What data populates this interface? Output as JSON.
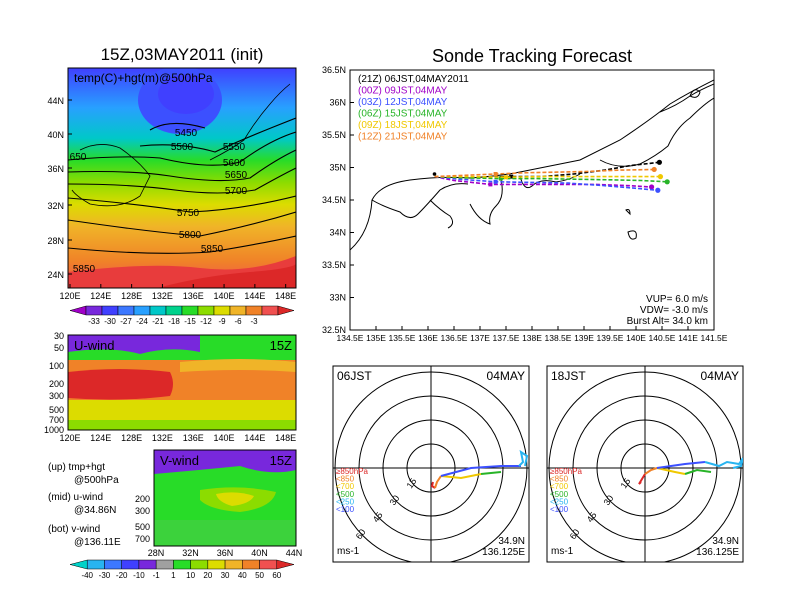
{
  "left_title": "15Z,03MAY2011 (init)",
  "right_title": "Sonde Tracking Forecast",
  "map_panel": {
    "label": "temp(C)+hgt(m)@500hPa",
    "lat_ticks": [
      "44N",
      "40N",
      "36N",
      "32N",
      "28N",
      "24N"
    ],
    "lon_ticks": [
      "120E",
      "124E",
      "128E",
      "132E",
      "136E",
      "140E",
      "144E",
      "148E"
    ],
    "contour_labels": [
      "5450",
      "5500",
      "5550",
      "5600",
      "5650",
      "5700",
      "5750",
      "5800",
      "5850",
      "5850",
      "650"
    ],
    "colorbar_ticks": [
      "-33",
      "-30",
      "-27",
      "-24",
      "-21",
      "-18",
      "-15",
      "-12",
      "-9",
      "-6",
      "-3"
    ],
    "colorbar_colors": [
      "#a000c8",
      "#7828dc",
      "#4040ff",
      "#3c78ff",
      "#28a0ff",
      "#00c8c8",
      "#00d28c",
      "#28dc28",
      "#8cdc00",
      "#dcdc00",
      "#f0b428",
      "#f08228",
      "#f05050",
      "#dc2828"
    ]
  },
  "u_panel": {
    "label": "U-wind",
    "time": "15Z",
    "y_ticks": [
      "30",
      "50",
      "100",
      "200",
      "300",
      "500",
      "700",
      "1000"
    ],
    "x_ticks": [
      "120E",
      "124E",
      "128E",
      "132E",
      "136E",
      "140E",
      "144E",
      "148E"
    ]
  },
  "v_panel": {
    "label": "V-wind",
    "time": "15Z",
    "y_ticks": [
      "200",
      "300",
      "500",
      "700"
    ],
    "x_ticks": [
      "28N",
      "32N",
      "36N",
      "40N",
      "44N"
    ]
  },
  "legend_notes": [
    {
      "line1": "(up) tmp+hgt",
      "line2": "@500hPa"
    },
    {
      "line1": "(mid) u-wind",
      "line2": "@34.86N"
    },
    {
      "line1": "(bot) v-wind",
      "line2": "@136.11E"
    }
  ],
  "wind_colorbar": {
    "ticks": [
      "-40",
      "-30",
      "-20",
      "-10",
      "-1",
      "1",
      "10",
      "20",
      "30",
      "40",
      "50",
      "60"
    ],
    "colors": [
      "#00d2c8",
      "#28b4f0",
      "#3c78ff",
      "#4040ff",
      "#7828dc",
      "#a0a0a0",
      "#28dc28",
      "#8cdc00",
      "#dcdc00",
      "#f0b428",
      "#f08228",
      "#f05050",
      "#dc2828"
    ]
  },
  "track_panel": {
    "lat_ticks": [
      "36.5N",
      "36N",
      "35.5N",
      "35N",
      "34.5N",
      "34N",
      "33.5N",
      "33N",
      "32.5N"
    ],
    "lon_ticks": [
      "134.5E",
      "135E",
      "135.5E",
      "136E",
      "136.5E",
      "137E",
      "137.5E",
      "138E",
      "138.5E",
      "139E",
      "139.5E",
      "140E",
      "140.5E",
      "141E",
      "141.5E"
    ],
    "legend": [
      {
        "label": "(21Z)  06JST,04MAY2011",
        "color": "#000000"
      },
      {
        "label": "(00Z)  09JST,04MAY",
        "color": "#a000c8"
      },
      {
        "label": "(03Z)  12JST,04MAY",
        "color": "#3c50ff"
      },
      {
        "label": "(06Z)  15JST,04MAY",
        "color": "#28b428"
      },
      {
        "label": "(09Z)  18JST,04MAY",
        "color": "#f0c800"
      },
      {
        "label": "(12Z)  21JST,04MAY",
        "color": "#f08228"
      }
    ],
    "params": [
      "VUP=  6.0  m/s",
      "VDW=  -3.0  m/s",
      "Burst Alt=  34.0  km"
    ]
  },
  "chart_data": {
    "type": "line",
    "title": "Sonde Tracking Forecast",
    "xlabel": "",
    "ylabel": "",
    "xlim": [
      134.5,
      141.5
    ],
    "ylim": [
      32.5,
      36.5
    ],
    "launch_point": {
      "lon": 136.125,
      "lat": 34.9
    },
    "series": [
      {
        "name": "(21Z)  06JST,04MAY2011",
        "color": "#000000",
        "dash": true,
        "points": [
          [
            136.125,
            34.86
          ],
          [
            137.0,
            34.85
          ],
          [
            137.6,
            34.86
          ],
          [
            138.2,
            34.86
          ],
          [
            138.8,
            34.9
          ],
          [
            139.4,
            34.96
          ],
          [
            139.9,
            35.03
          ],
          [
            140.45,
            35.08
          ]
        ]
      },
      {
        "name": "(00Z)  09JST,04MAY",
        "color": "#a000c8",
        "dash": true,
        "points": [
          [
            136.125,
            34.86
          ],
          [
            136.5,
            34.8
          ],
          [
            137.2,
            34.74
          ],
          [
            137.8,
            34.74
          ],
          [
            138.5,
            34.74
          ],
          [
            139.2,
            34.74
          ],
          [
            139.9,
            34.72
          ],
          [
            140.3,
            34.7
          ]
        ]
      },
      {
        "name": "(03Z)  12JST,04MAY",
        "color": "#3c50ff",
        "dash": true,
        "points": [
          [
            136.125,
            34.86
          ],
          [
            136.6,
            34.82
          ],
          [
            137.3,
            34.78
          ],
          [
            138.0,
            34.77
          ],
          [
            138.7,
            34.76
          ],
          [
            139.4,
            34.72
          ],
          [
            140.0,
            34.68
          ],
          [
            140.42,
            34.65
          ]
        ]
      },
      {
        "name": "(06Z)  15JST,04MAY",
        "color": "#28b428",
        "dash": true,
        "points": [
          [
            136.125,
            34.86
          ],
          [
            136.7,
            34.84
          ],
          [
            137.4,
            34.83
          ],
          [
            138.1,
            34.83
          ],
          [
            138.8,
            34.82
          ],
          [
            139.5,
            34.81
          ],
          [
            140.1,
            34.8
          ],
          [
            140.6,
            34.78
          ]
        ]
      },
      {
        "name": "(09Z)  18JST,04MAY",
        "color": "#f0c800",
        "dash": true,
        "points": [
          [
            136.125,
            34.86
          ],
          [
            136.8,
            34.86
          ],
          [
            137.5,
            34.85
          ],
          [
            138.2,
            34.86
          ],
          [
            138.9,
            34.86
          ],
          [
            139.6,
            34.86
          ],
          [
            140.1,
            34.86
          ],
          [
            140.47,
            34.86
          ]
        ]
      },
      {
        "name": "(12Z)  21JST,04MAY",
        "color": "#f08228",
        "dash": true,
        "points": [
          [
            136.125,
            34.86
          ],
          [
            136.7,
            34.88
          ],
          [
            137.3,
            34.9
          ],
          [
            137.9,
            34.92
          ],
          [
            138.5,
            34.93
          ],
          [
            139.1,
            34.94
          ],
          [
            139.7,
            34.96
          ],
          [
            140.35,
            34.97
          ]
        ]
      }
    ]
  },
  "hodograph_left": {
    "time": "06JST",
    "date": "04MAY",
    "ring_labels": [
      "15",
      "30",
      "45",
      "60"
    ],
    "levels": [
      {
        "label": "≥850hPa",
        "color": "#dc2828"
      },
      {
        "label": "<850",
        "color": "#f08228"
      },
      {
        "label": "<700",
        "color": "#f0c800"
      },
      {
        "label": "<500",
        "color": "#28b428"
      },
      {
        "label": "<250",
        "color": "#28b4f0"
      },
      {
        "label": "<100",
        "color": "#3c50ff"
      }
    ],
    "units": "ms-1",
    "lat": "34.9N",
    "lon": "136.125E"
  },
  "hodograph_right": {
    "time": "18JST",
    "date": "04MAY",
    "ring_labels": [
      "15",
      "30",
      "45",
      "60"
    ],
    "levels": [
      {
        "label": "≥850hPa",
        "color": "#dc2828"
      },
      {
        "label": "<850",
        "color": "#f08228"
      },
      {
        "label": "<700",
        "color": "#f0c800"
      },
      {
        "label": "<500",
        "color": "#28b428"
      },
      {
        "label": "<250",
        "color": "#28b4f0"
      },
      {
        "label": "<100",
        "color": "#3c50ff"
      }
    ],
    "units": "ms-1",
    "lat": "34.9N",
    "lon": "136.125E"
  }
}
